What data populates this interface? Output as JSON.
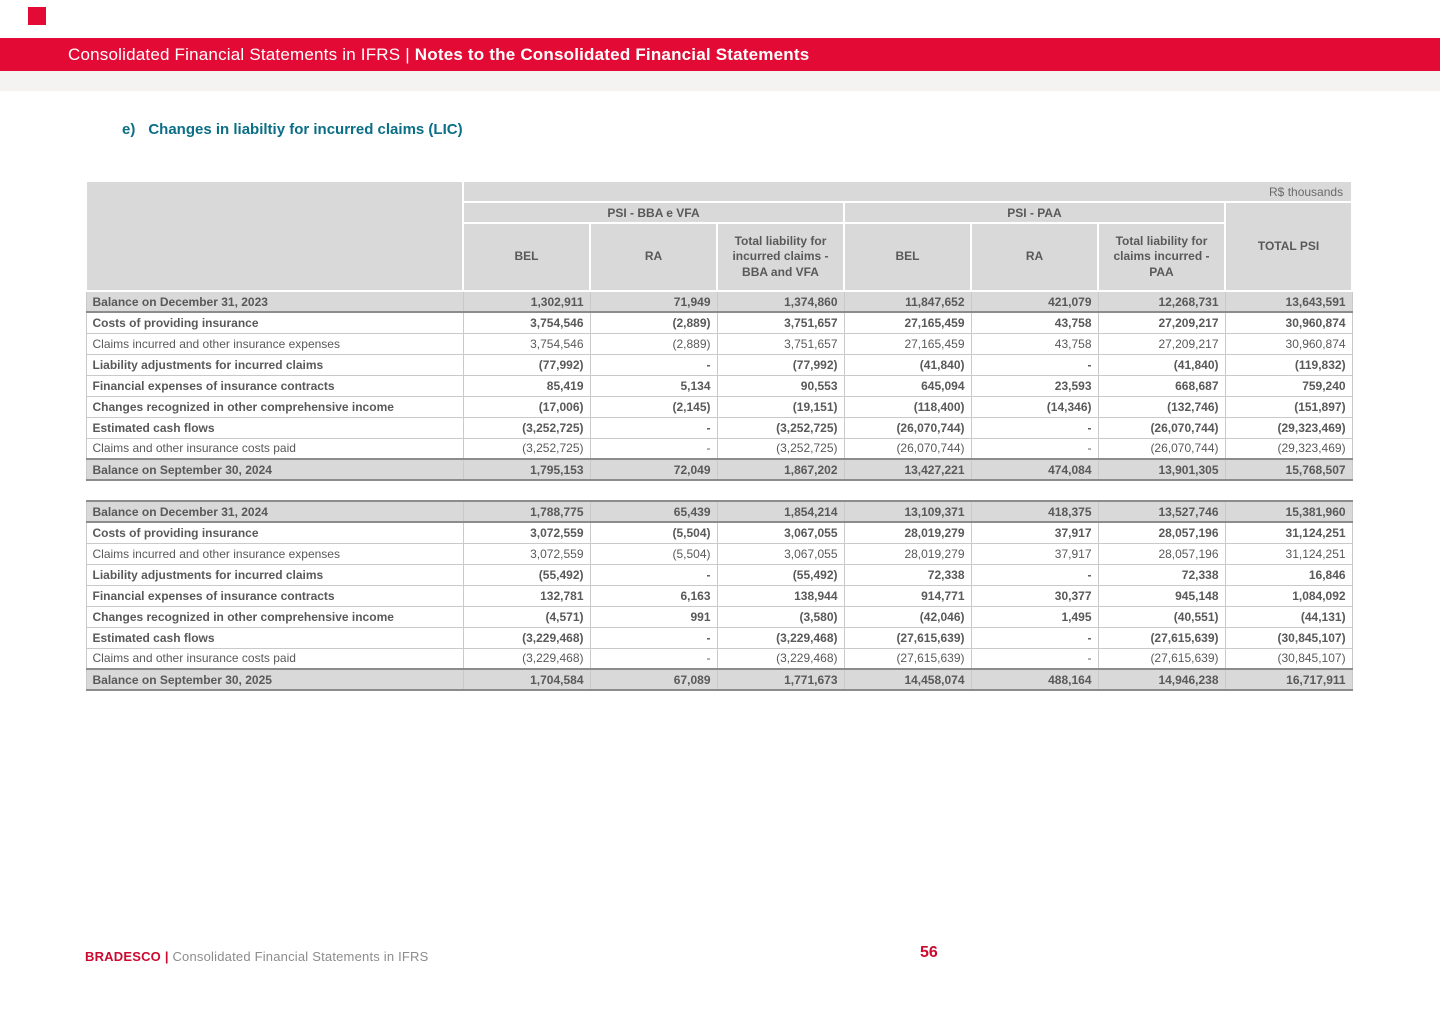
{
  "colors": {
    "brand_red": "#E30B36",
    "footer_red": "#CC092F",
    "header_gray": "#D9D9D9",
    "text_gray": "#595959",
    "section_teal": "#0A6E86"
  },
  "banner": {
    "title_prefix": "Consolidated Financial Statements in IFRS | ",
    "title_emphasis": "Notes to the Consolidated Financial Statements"
  },
  "section": {
    "marker": "e)",
    "title": "Changes in liabiltiy for incurred claims (LIC)"
  },
  "table": {
    "unit_label": "R$ thousands",
    "groups": [
      {
        "label": "PSI - BBA e VFA"
      },
      {
        "label": "PSI - PAA"
      }
    ],
    "columns": [
      "BEL",
      "RA",
      "Total liability for incurred claims - BBA and VFA",
      "BEL",
      "RA",
      "Total liability for claims incurred - PAA"
    ],
    "total_column": "TOTAL PSI",
    "blocks": [
      {
        "rows": [
          {
            "label": "Balance on December 31, 2023",
            "style": "balance",
            "values": [
              "1,302,911",
              "71,949",
              "1,374,860",
              "11,847,652",
              "421,079",
              "12,268,731",
              "13,643,591"
            ]
          },
          {
            "label": "Costs of providing insurance",
            "style": "bold",
            "values": [
              "3,754,546",
              "(2,889)",
              "3,751,657",
              "27,165,459",
              "43,758",
              "27,209,217",
              "30,960,874"
            ]
          },
          {
            "label": "Claims incurred and other insurance expenses",
            "style": "normal",
            "values": [
              "3,754,546",
              "(2,889)",
              "3,751,657",
              "27,165,459",
              "43,758",
              "27,209,217",
              "30,960,874"
            ]
          },
          {
            "label": "Liability adjustments for incurred claims",
            "style": "bold",
            "values": [
              "(77,992)",
              "-",
              "(77,992)",
              "(41,840)",
              "-",
              "(41,840)",
              "(119,832)"
            ]
          },
          {
            "label": "Financial expenses of insurance contracts",
            "style": "bold",
            "values": [
              "85,419",
              "5,134",
              "90,553",
              "645,094",
              "23,593",
              "668,687",
              "759,240"
            ]
          },
          {
            "label": "Changes recognized in other comprehensive income",
            "style": "bold",
            "values": [
              "(17,006)",
              "(2,145)",
              "(19,151)",
              "(118,400)",
              "(14,346)",
              "(132,746)",
              "(151,897)"
            ]
          },
          {
            "label": "Estimated cash flows",
            "style": "bold",
            "values": [
              "(3,252,725)",
              "-",
              "(3,252,725)",
              "(26,070,744)",
              "-",
              "(26,070,744)",
              "(29,323,469)"
            ]
          },
          {
            "label": "Claims and other insurance costs paid",
            "style": "normal",
            "values": [
              "(3,252,725)",
              "-",
              "(3,252,725)",
              "(26,070,744)",
              "-",
              "(26,070,744)",
              "(29,323,469)"
            ]
          },
          {
            "label": "Balance on September 30, 2024",
            "style": "balance",
            "values": [
              "1,795,153",
              "72,049",
              "1,867,202",
              "13,427,221",
              "474,084",
              "13,901,305",
              "15,768,507"
            ]
          }
        ]
      },
      {
        "rows": [
          {
            "label": "Balance on December 31, 2024",
            "style": "balance",
            "values": [
              "1,788,775",
              "65,439",
              "1,854,214",
              "13,109,371",
              "418,375",
              "13,527,746",
              "15,381,960"
            ]
          },
          {
            "label": "Costs of providing insurance",
            "style": "bold",
            "values": [
              "3,072,559",
              "(5,504)",
              "3,067,055",
              "28,019,279",
              "37,917",
              "28,057,196",
              "31,124,251"
            ]
          },
          {
            "label": "Claims incurred and other insurance expenses",
            "style": "normal",
            "values": [
              "3,072,559",
              "(5,504)",
              "3,067,055",
              "28,019,279",
              "37,917",
              "28,057,196",
              "31,124,251"
            ]
          },
          {
            "label": "Liability adjustments for incurred claims",
            "style": "bold",
            "values": [
              "(55,492)",
              "-",
              "(55,492)",
              "72,338",
              "-",
              "72,338",
              "16,846"
            ]
          },
          {
            "label": "Financial expenses of insurance contracts",
            "style": "bold",
            "values": [
              "132,781",
              "6,163",
              "138,944",
              "914,771",
              "30,377",
              "945,148",
              "1,084,092"
            ]
          },
          {
            "label": "Changes recognized in other comprehensive income",
            "style": "bold",
            "values": [
              "(4,571)",
              "991",
              "(3,580)",
              "(42,046)",
              "1,495",
              "(40,551)",
              "(44,131)"
            ]
          },
          {
            "label": "Estimated cash flows",
            "style": "bold",
            "values": [
              "(3,229,468)",
              "-",
              "(3,229,468)",
              "(27,615,639)",
              "-",
              "(27,615,639)",
              "(30,845,107)"
            ]
          },
          {
            "label": "Claims and other insurance costs paid",
            "style": "normal",
            "values": [
              "(3,229,468)",
              "-",
              "(3,229,468)",
              "(27,615,639)",
              "-",
              "(27,615,639)",
              "(30,845,107)"
            ]
          },
          {
            "label": "Balance on September 30, 2025",
            "style": "balance",
            "values": [
              "1,704,584",
              "67,089",
              "1,771,673",
              "14,458,074",
              "488,164",
              "14,946,238",
              "16,717,911"
            ]
          }
        ]
      }
    ]
  },
  "footer": {
    "brand": "BRADESCO",
    "separator": "|",
    "document": "Consolidated Financial Statements in IFRS",
    "page": "56"
  }
}
